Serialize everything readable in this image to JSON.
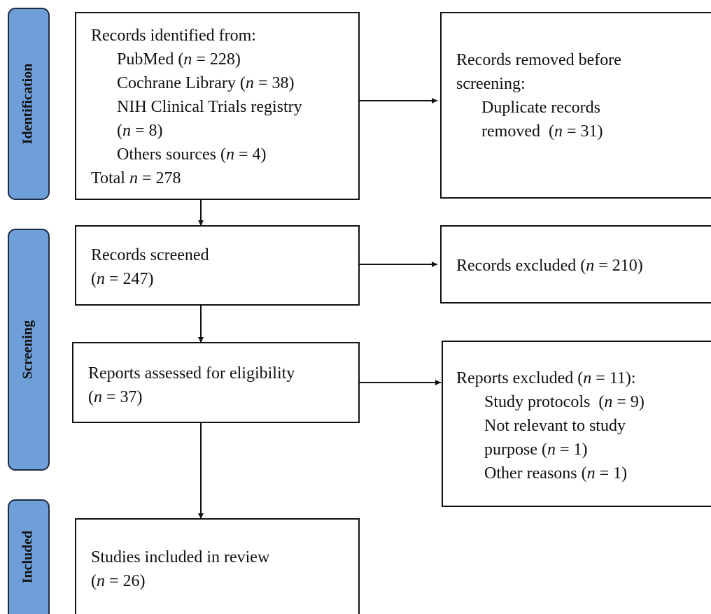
{
  "phases": [
    "Identification",
    "Screening",
    "Included"
  ],
  "boxes": [
    {
      "lines": [
        "Records identified from:"
      ],
      "items": [
        [
          "PubMed (n = 228)"
        ],
        [
          "Cochrane Library (n = 38)"
        ],
        [
          "NIH Clinical Trials registry",
          "(n = 8)"
        ],
        [
          "Others sources (n = 4)"
        ]
      ],
      "footer": [
        "Total n = 278"
      ]
    },
    {
      "lines": [
        "Records removed before",
        "screening:"
      ],
      "items": [
        [
          "Duplicate records",
          "removed  (n = 31)"
        ]
      ]
    },
    {
      "lines": [
        "Records screened",
        "(n = 247)"
      ]
    },
    {
      "lines": [
        "Records excluded (n = 210)"
      ]
    },
    {
      "lines": [
        "Reports assessed for eligibility",
        "(n = 37)"
      ]
    },
    {
      "lines": [
        "Reports excluded (n = 11):"
      ],
      "items": [
        [
          "Study protocols  (n = 9)"
        ],
        [
          "Not relevant to study",
          "purpose (n = 1)"
        ],
        [
          "Other reasons (n = 1)"
        ]
      ]
    },
    {
      "lines": [
        "Studies included in review",
        "(n = 26)"
      ]
    }
  ]
}
